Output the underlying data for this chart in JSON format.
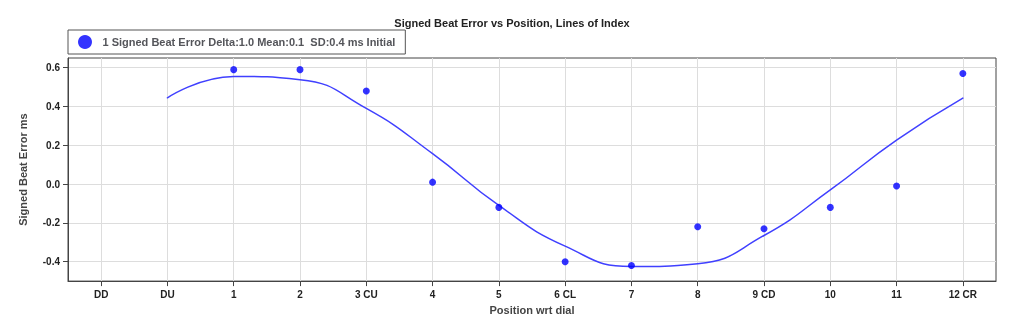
{
  "chart_data": {
    "type": "scatter",
    "title": "Signed Beat Error vs Position, Lines of Index",
    "xlabel": "Position wrt dial",
    "ylabel": "Signed Beat Error ms",
    "categories": [
      "DD",
      "DU",
      "1",
      "2",
      "3 CU",
      "4",
      "5",
      "6 CL",
      "7",
      "8",
      "9 CD",
      "10",
      "11",
      "12 CR"
    ],
    "series": [
      {
        "name": "1 Signed Beat Error Delta:1.0 Mean:0.1  SD:0.4 ms Initial",
        "color": "#0000ff",
        "marker": "circle",
        "values": [
          null,
          null,
          0.59,
          0.59,
          0.48,
          0.01,
          -0.12,
          -0.4,
          -0.42,
          -0.22,
          -0.23,
          -0.12,
          -0.01,
          0.57
        ]
      },
      {
        "type": "line",
        "color": "#4040ff",
        "marker": "none",
        "line_style": "solid",
        "values": [
          null,
          0.445,
          0.555,
          0.538,
          0.39,
          0.157,
          -0.11,
          -0.32,
          -0.425,
          -0.41,
          -0.265,
          -0.03,
          0.227,
          0.443
        ]
      }
    ],
    "ylim": [
      -0.5,
      0.65
    ],
    "yticks": [
      -0.4,
      -0.2,
      {
        "value": 0,
        "label": "0.0"
      },
      0.2,
      0.4,
      0.6
    ],
    "grid": true,
    "legend": "top left"
  }
}
